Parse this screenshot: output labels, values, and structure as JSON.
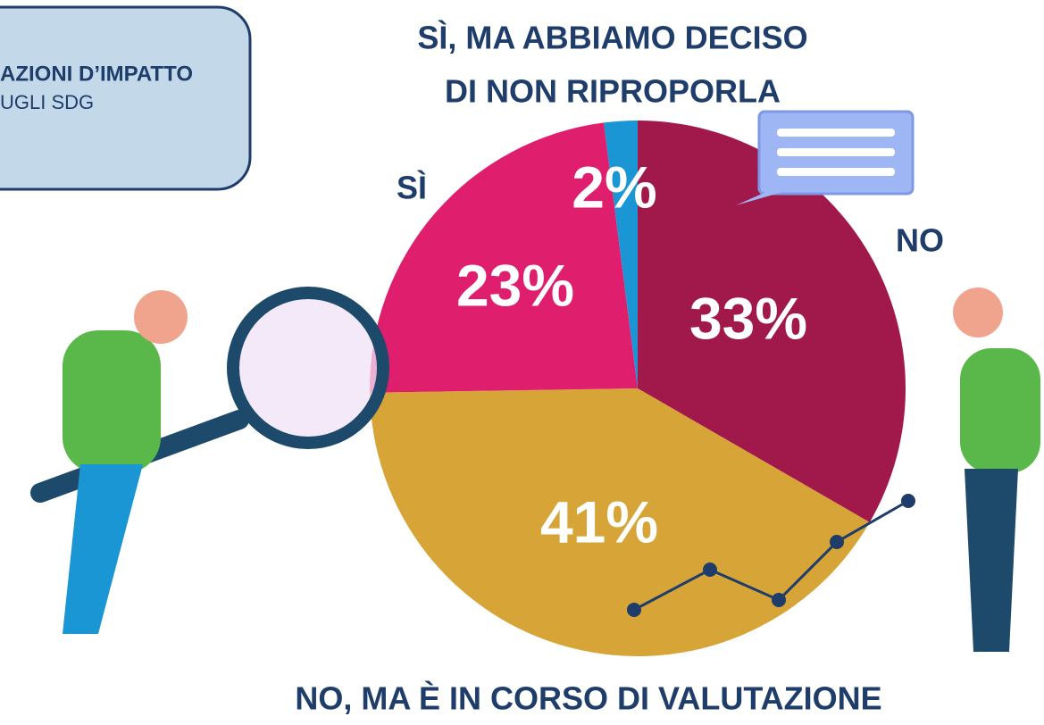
{
  "chart_data": {
    "type": "pie",
    "title": [
      "AZIONI D’IMPATTO",
      "UGLI SDG"
    ],
    "categories": [
      [
        "NO"
      ],
      [
        "NO, MA È IN CORSO DI VALUTAZIONE"
      ],
      [
        "SÌ"
      ],
      [
        "SÌ, MA ABBIAMO DECISO",
        "DI NON RIPROPORLA"
      ]
    ],
    "values": [
      33,
      41,
      23,
      2
    ],
    "value_labels": [
      "33%",
      "41%",
      "23%",
      "2%"
    ],
    "colors": [
      "#a0194a",
      "#d6a437",
      "#e01e6e",
      "#1a96d4"
    ]
  }
}
